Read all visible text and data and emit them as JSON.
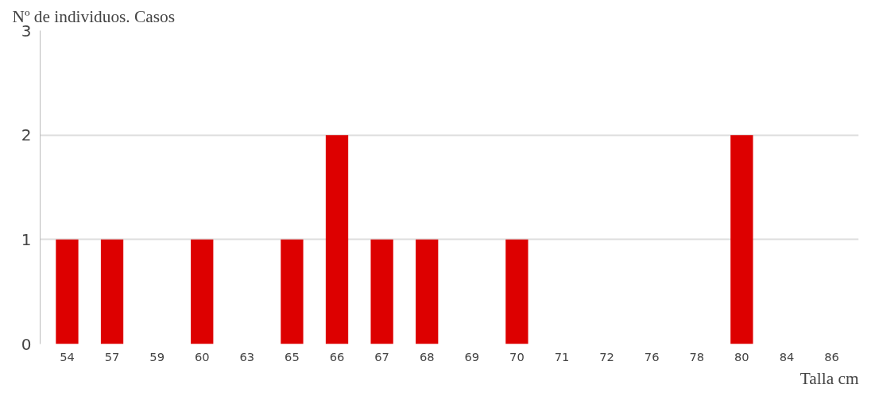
{
  "chart_data": {
    "type": "bar",
    "ylabel": "Nº de individuos. Casos",
    "xlabel": "Talla cm",
    "categories": [
      "54",
      "57",
      "59",
      "60",
      "63",
      "65",
      "66",
      "67",
      "68",
      "69",
      "70",
      "71",
      "72",
      "76",
      "78",
      "80",
      "84",
      "86"
    ],
    "values": [
      1,
      1,
      0,
      1,
      0,
      1,
      2,
      1,
      1,
      0,
      1,
      0,
      0,
      0,
      0,
      2,
      0,
      0
    ],
    "color": "#dd0000",
    "ylim": [
      0,
      3
    ],
    "yticks": [
      0,
      1,
      2,
      3
    ],
    "grid": "y"
  }
}
